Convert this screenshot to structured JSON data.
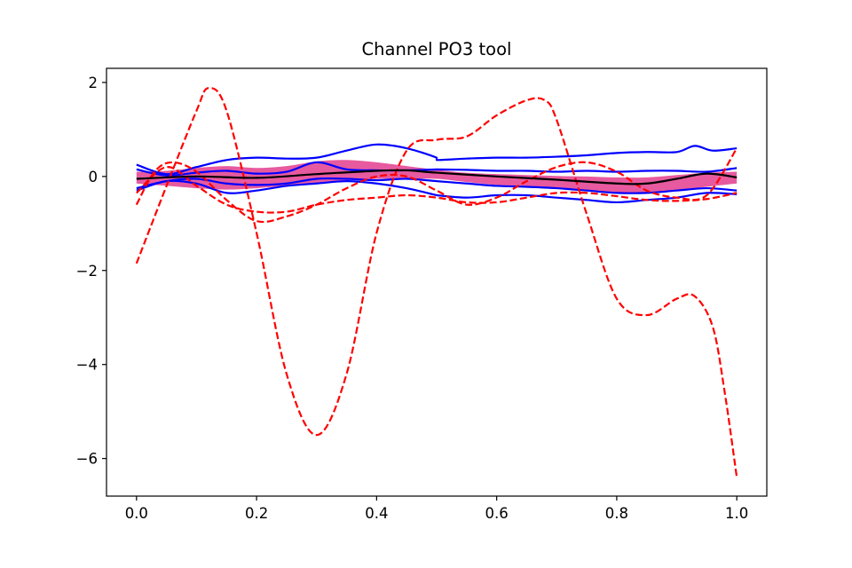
{
  "chart_data": {
    "type": "line",
    "title": "Channel PO3 tool",
    "xlabel": "",
    "ylabel": "",
    "xlim": [
      -0.05,
      1.05
    ],
    "ylim": [
      -6.8,
      2.3
    ],
    "xticks": [
      0.0,
      0.2,
      0.4,
      0.6,
      0.8,
      1.0
    ],
    "xtick_labels": [
      "0.0",
      "0.2",
      "0.4",
      "0.6",
      "0.8",
      "1.0"
    ],
    "yticks": [
      2,
      0,
      -2,
      -4,
      -6
    ],
    "ytick_labels": [
      "2",
      "0",
      "−2",
      "−4",
      "−6"
    ],
    "grid": false,
    "legend": "none",
    "band": {
      "color": "#e75a9f",
      "x": [
        0.0,
        0.05,
        0.1,
        0.15,
        0.2,
        0.25,
        0.3,
        0.35,
        0.4,
        0.45,
        0.5,
        0.55,
        0.6,
        0.65,
        0.7,
        0.75,
        0.8,
        0.85,
        0.9,
        0.95,
        1.0
      ],
      "upper": [
        0.1,
        0.12,
        0.18,
        0.22,
        0.18,
        0.22,
        0.32,
        0.35,
        0.3,
        0.22,
        0.14,
        0.08,
        0.05,
        0.03,
        0.01,
        0.0,
        -0.02,
        -0.02,
        0.03,
        0.08,
        0.1
      ],
      "lower": [
        -0.15,
        -0.2,
        -0.25,
        -0.28,
        -0.25,
        -0.2,
        -0.15,
        -0.08,
        -0.05,
        -0.05,
        -0.05,
        -0.12,
        -0.18,
        -0.22,
        -0.25,
        -0.3,
        -0.35,
        -0.35,
        -0.3,
        -0.22,
        -0.15
      ]
    },
    "series": [
      {
        "color": "#000000",
        "dash": "solid",
        "width": 2.2,
        "x": [
          0.0,
          0.1,
          0.2,
          0.3,
          0.4,
          0.45,
          0.5,
          0.6,
          0.7,
          0.8,
          0.85,
          0.9,
          0.95,
          1.0
        ],
        "y": [
          -0.05,
          0.0,
          -0.03,
          0.05,
          0.12,
          0.13,
          0.08,
          0.0,
          -0.07,
          -0.15,
          -0.15,
          -0.05,
          0.06,
          -0.02
        ]
      },
      {
        "color": "#0000ff",
        "dash": "solid",
        "width": 2.2,
        "x": [
          0.0,
          0.05,
          0.1,
          0.15,
          0.2,
          0.25,
          0.3,
          0.35,
          0.4,
          0.45,
          0.5,
          0.5,
          0.55,
          0.6,
          0.65,
          0.7,
          0.75,
          0.8,
          0.85,
          0.9,
          0.93,
          0.96,
          1.0
        ],
        "y": [
          0.25,
          0.05,
          0.2,
          0.35,
          0.4,
          0.38,
          0.4,
          0.55,
          0.68,
          0.6,
          0.4,
          0.35,
          0.38,
          0.4,
          0.4,
          0.42,
          0.45,
          0.5,
          0.52,
          0.52,
          0.65,
          0.55,
          0.6
        ]
      },
      {
        "color": "#0000ff",
        "dash": "solid",
        "width": 2.2,
        "x": [
          0.0,
          0.05,
          0.1,
          0.15,
          0.2,
          0.25,
          0.3,
          0.35,
          0.4,
          0.45,
          0.5,
          0.5,
          0.55,
          0.6,
          0.65,
          0.7,
          0.75,
          0.8,
          0.85,
          0.9,
          0.95,
          1.0
        ],
        "y": [
          0.15,
          0.02,
          0.08,
          0.12,
          0.06,
          0.1,
          0.3,
          0.15,
          0.13,
          0.13,
          0.15,
          0.15,
          0.14,
          0.12,
          0.12,
          0.1,
          0.12,
          0.1,
          0.12,
          0.12,
          0.1,
          0.18
        ]
      },
      {
        "color": "#0000ff",
        "dash": "solid",
        "width": 2.2,
        "x": [
          0.0,
          0.05,
          0.1,
          0.15,
          0.2,
          0.25,
          0.3,
          0.35,
          0.4,
          0.45,
          0.5,
          0.5,
          0.55,
          0.6,
          0.65,
          0.7,
          0.75,
          0.8,
          0.85,
          0.9,
          0.95,
          1.0
        ],
        "y": [
          -0.25,
          -0.1,
          -0.05,
          -0.15,
          -0.18,
          -0.15,
          -0.05,
          -0.05,
          -0.08,
          -0.05,
          -0.1,
          -0.1,
          -0.15,
          -0.2,
          -0.22,
          -0.25,
          -0.3,
          -0.35,
          -0.35,
          -0.3,
          -0.25,
          -0.3
        ]
      },
      {
        "color": "#0000ff",
        "dash": "solid",
        "width": 2.2,
        "x": [
          0.0,
          0.05,
          0.1,
          0.15,
          0.2,
          0.25,
          0.3,
          0.35,
          0.4,
          0.45,
          0.5,
          0.5,
          0.55,
          0.6,
          0.65,
          0.7,
          0.75,
          0.8,
          0.85,
          0.9,
          0.95,
          1.0
        ],
        "y": [
          -0.3,
          -0.1,
          -0.15,
          -0.35,
          -0.3,
          -0.2,
          -0.15,
          -0.1,
          -0.15,
          -0.25,
          -0.4,
          -0.4,
          -0.45,
          -0.4,
          -0.4,
          -0.45,
          -0.5,
          -0.55,
          -0.5,
          -0.45,
          -0.35,
          -0.38
        ]
      },
      {
        "color": "#ff0000",
        "dash": "dashed",
        "width": 2.2,
        "x": [
          0.0,
          0.05,
          0.1,
          0.12,
          0.15,
          0.2,
          0.25,
          0.3,
          0.35,
          0.4,
          0.45,
          0.5,
          0.55,
          0.6,
          0.65,
          0.68,
          0.7,
          0.75,
          0.8,
          0.85,
          0.9,
          0.93,
          0.96,
          0.98,
          1.0
        ],
        "y": [
          -1.85,
          -0.2,
          1.4,
          1.88,
          1.4,
          -1.2,
          -4.2,
          -5.5,
          -4.2,
          -1.2,
          0.55,
          0.78,
          0.85,
          1.3,
          1.62,
          1.62,
          1.2,
          -0.8,
          -2.6,
          -2.95,
          -2.6,
          -2.55,
          -3.2,
          -4.6,
          -6.4
        ]
      },
      {
        "color": "#ff0000",
        "dash": "dashed",
        "width": 2.2,
        "x": [
          0.0,
          0.03,
          0.06,
          0.1,
          0.15,
          0.2,
          0.25,
          0.3,
          0.35,
          0.4,
          0.45,
          0.5,
          0.55,
          0.6,
          0.65,
          0.7,
          0.75,
          0.8,
          0.85,
          0.9,
          0.95,
          1.0
        ],
        "y": [
          -0.6,
          0.1,
          0.3,
          0.1,
          -0.5,
          -0.95,
          -0.85,
          -0.6,
          -0.25,
          0.0,
          0.0,
          -0.3,
          -0.6,
          -0.45,
          -0.1,
          0.2,
          0.3,
          0.1,
          -0.3,
          -0.45,
          -0.4,
          0.6
        ]
      },
      {
        "color": "#ff0000",
        "dash": "dashed",
        "width": 2.2,
        "x": [
          0.0,
          0.05,
          0.1,
          0.15,
          0.2,
          0.25,
          0.3,
          0.35,
          0.4,
          0.45,
          0.5,
          0.55,
          0.6,
          0.65,
          0.7,
          0.75,
          0.8,
          0.85,
          0.9,
          0.95,
          1.0
        ],
        "y": [
          -0.35,
          0.2,
          -0.2,
          -0.6,
          -0.75,
          -0.75,
          -0.6,
          -0.5,
          -0.45,
          -0.4,
          -0.45,
          -0.55,
          -0.55,
          -0.45,
          -0.35,
          -0.35,
          -0.42,
          -0.5,
          -0.52,
          -0.48,
          -0.35
        ]
      }
    ]
  }
}
